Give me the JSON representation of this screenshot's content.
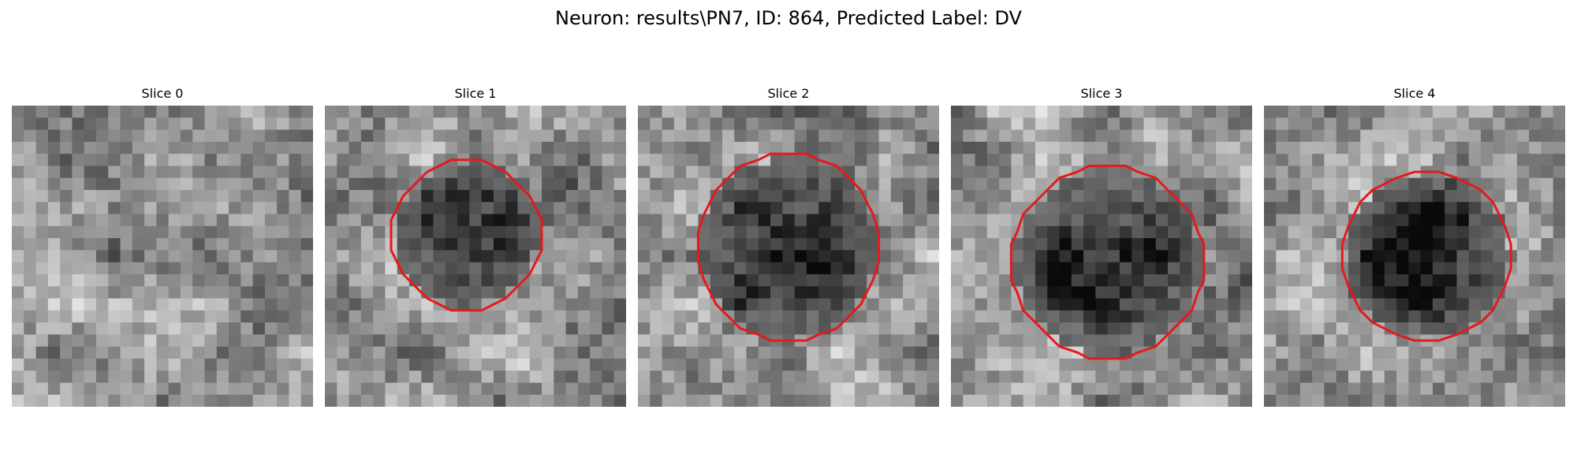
{
  "figure": {
    "title": "Neuron: results\\PN7, ID: 864, Predicted Label: DV"
  },
  "panels": [
    {
      "title": "Slice 0",
      "seed": 11,
      "base": 150,
      "contrast": 55,
      "outline": false,
      "dark_center": [
        0.5,
        0.5
      ],
      "dark_radius": 0.0,
      "dark_depth": 0
    },
    {
      "title": "Slice 1",
      "seed": 23,
      "base": 150,
      "contrast": 60,
      "outline": true,
      "dark_center": [
        0.47,
        0.43
      ],
      "dark_radius": 0.24,
      "dark_depth": 110
    },
    {
      "title": "Slice 2",
      "seed": 37,
      "base": 150,
      "contrast": 60,
      "outline": true,
      "dark_center": [
        0.5,
        0.47
      ],
      "dark_radius": 0.3,
      "dark_depth": 115
    },
    {
      "title": "Slice 3",
      "seed": 41,
      "base": 140,
      "contrast": 65,
      "outline": true,
      "dark_center": [
        0.52,
        0.52
      ],
      "dark_radius": 0.31,
      "dark_depth": 110
    },
    {
      "title": "Slice 4",
      "seed": 53,
      "base": 160,
      "contrast": 55,
      "outline": true,
      "dark_center": [
        0.54,
        0.5
      ],
      "dark_radius": 0.28,
      "dark_depth": 120
    }
  ],
  "colors": {
    "outline": "#e41a1c"
  },
  "icons": []
}
